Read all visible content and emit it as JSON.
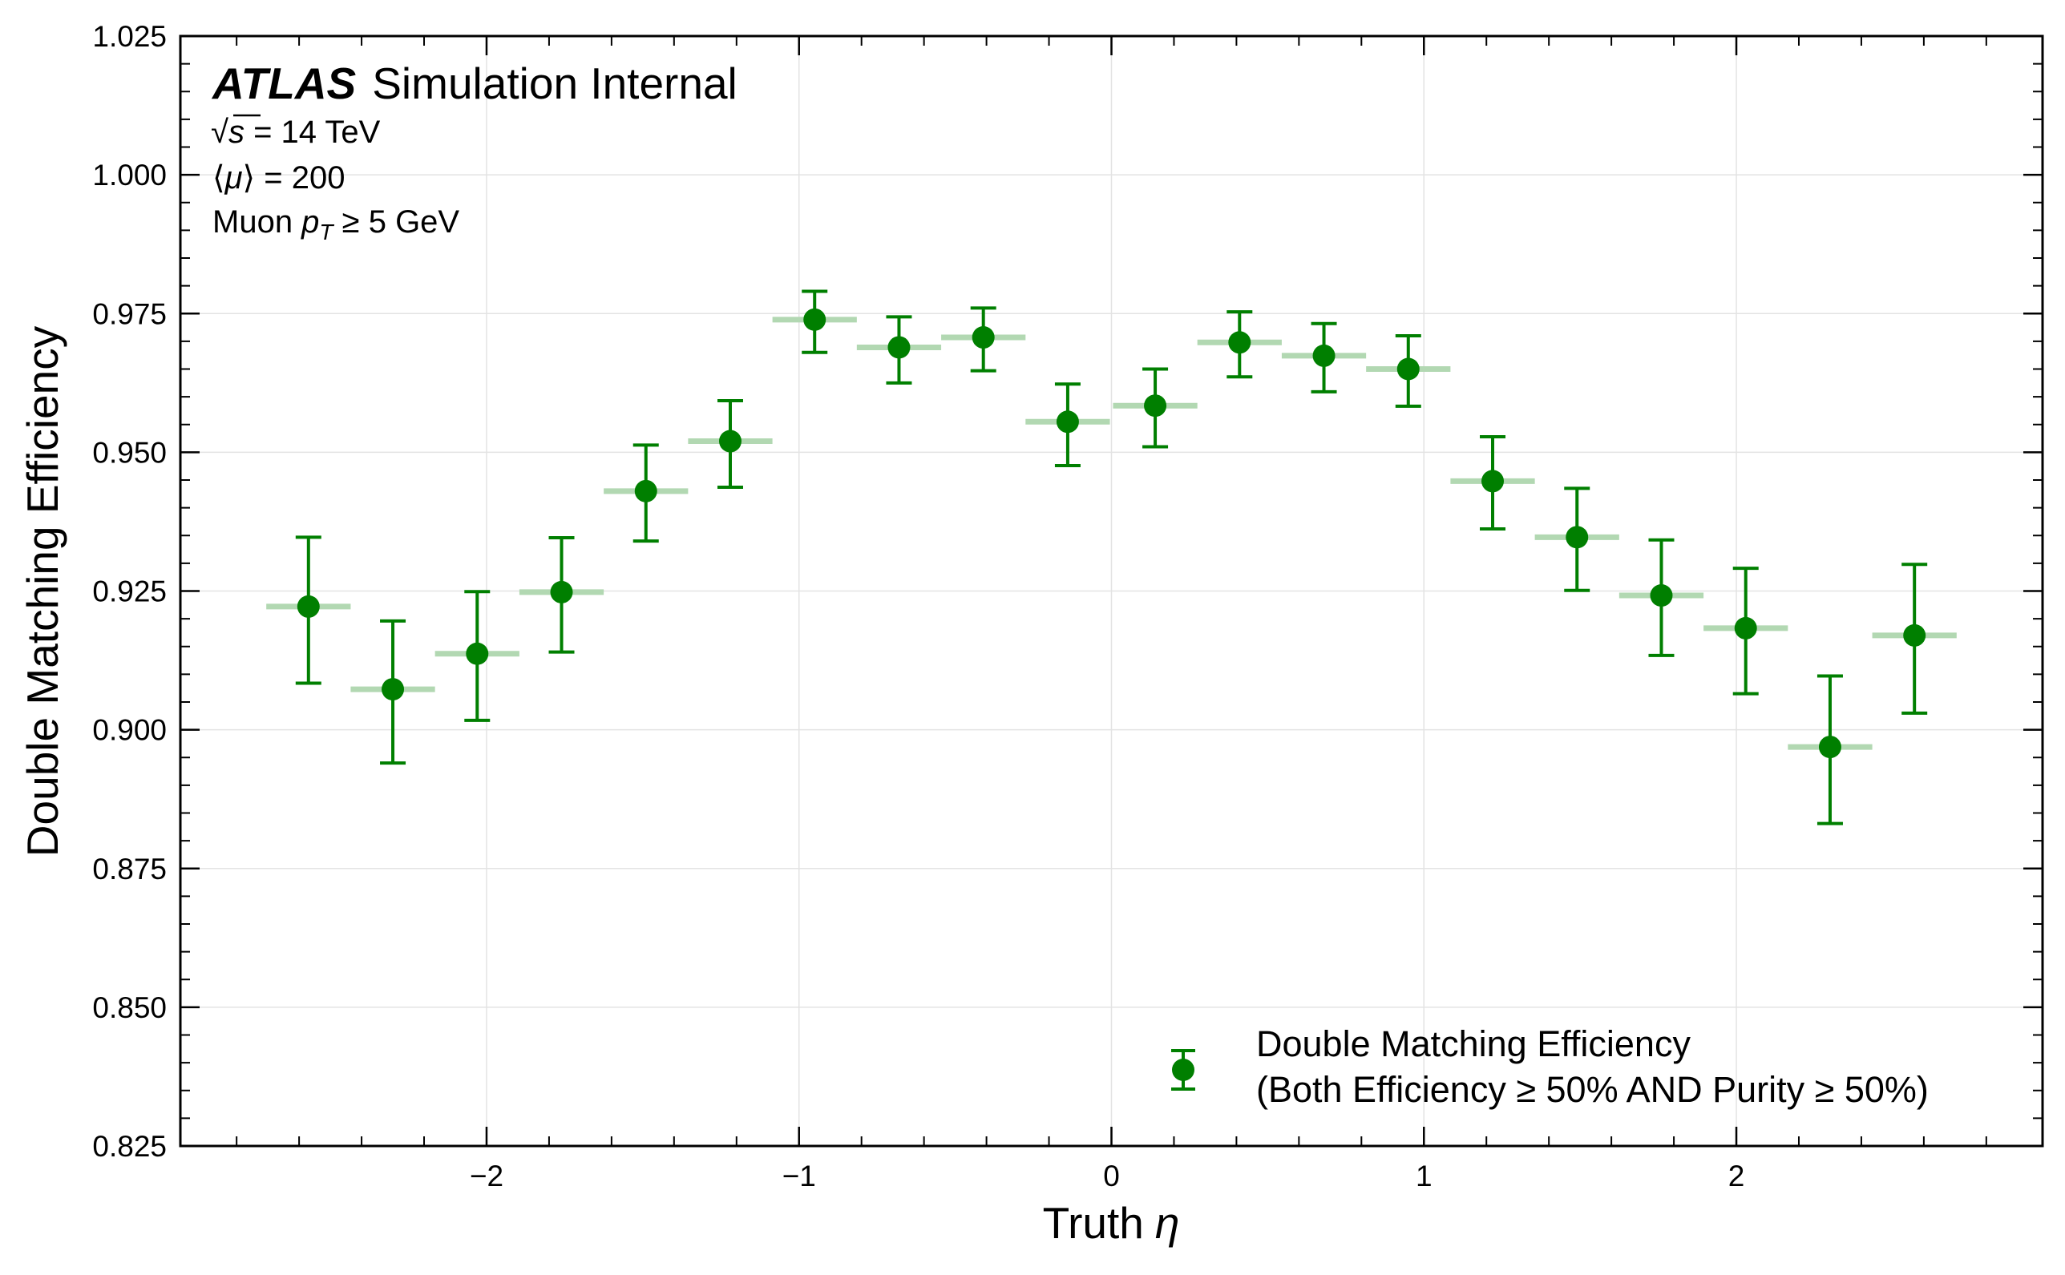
{
  "chart_data": {
    "type": "scatter",
    "style": "points with error bars and horizontal bin-width bars",
    "xlabel_main": "Truth",
    "xlabel_symbol": "η",
    "ylabel": "Double Matching Efficiency",
    "xlim": [
      -2.98,
      2.98
    ],
    "ylim": [
      0.825,
      1.025
    ],
    "x_ticks": [
      -2,
      -1,
      0,
      1,
      2
    ],
    "x_tick_labels": [
      "−2",
      "−1",
      "0",
      "1",
      "2"
    ],
    "y_ticks": [
      0.825,
      0.85,
      0.875,
      0.9,
      0.925,
      0.95,
      0.975,
      1.0,
      1.025
    ],
    "y_tick_labels": [
      "0.825",
      "0.850",
      "0.875",
      "0.900",
      "0.925",
      "0.950",
      "0.975",
      "1.000",
      "1.025"
    ],
    "grid": true,
    "legend_position": "lower-right",
    "annotations": {
      "experiment": "ATLAS",
      "status": "Simulation Internal",
      "energy_prefix": "√",
      "energy_var": "s",
      "energy_value": " = 14 TeV",
      "pileup_open": "⟨",
      "pileup_var": "μ",
      "pileup_close": "⟩",
      "pileup_value": " = 200",
      "cut_prefix": "Muon ",
      "cut_var": "p",
      "cut_sub": "T",
      "cut_value": " ≥ 5 GeV"
    },
    "series": [
      {
        "name": "Double Matching Efficiency",
        "name_line2": "(Both Efficiency ≥ 50% AND Purity ≥ 50%)",
        "color": "#007f00",
        "bin_color": "#b2d8b2",
        "bin_half_width": 0.135,
        "points": [
          {
            "x": -2.57,
            "y": 0.9222,
            "err_low": 0.0138,
            "err_high": 0.0125
          },
          {
            "x": -2.3,
            "y": 0.9073,
            "err_low": 0.0133,
            "err_high": 0.0123
          },
          {
            "x": -2.03,
            "y": 0.9137,
            "err_low": 0.012,
            "err_high": 0.0112
          },
          {
            "x": -1.76,
            "y": 0.9248,
            "err_low": 0.0108,
            "err_high": 0.0098
          },
          {
            "x": -1.49,
            "y": 0.943,
            "err_low": 0.009,
            "err_high": 0.0083
          },
          {
            "x": -1.22,
            "y": 0.952,
            "err_low": 0.0083,
            "err_high": 0.0073
          },
          {
            "x": -0.95,
            "y": 0.9739,
            "err_low": 0.0059,
            "err_high": 0.0051
          },
          {
            "x": -0.68,
            "y": 0.9689,
            "err_low": 0.0064,
            "err_high": 0.0055
          },
          {
            "x": -0.41,
            "y": 0.9707,
            "err_low": 0.006,
            "err_high": 0.0053
          },
          {
            "x": -0.14,
            "y": 0.9555,
            "err_low": 0.0079,
            "err_high": 0.0068
          },
          {
            "x": 0.14,
            "y": 0.9584,
            "err_low": 0.0074,
            "err_high": 0.0066
          },
          {
            "x": 0.41,
            "y": 0.9698,
            "err_low": 0.0062,
            "err_high": 0.0055
          },
          {
            "x": 0.68,
            "y": 0.9674,
            "err_low": 0.0065,
            "err_high": 0.0058
          },
          {
            "x": 0.95,
            "y": 0.965,
            "err_low": 0.0067,
            "err_high": 0.006
          },
          {
            "x": 1.22,
            "y": 0.9448,
            "err_low": 0.0086,
            "err_high": 0.008
          },
          {
            "x": 1.49,
            "y": 0.9347,
            "err_low": 0.0096,
            "err_high": 0.0088
          },
          {
            "x": 1.76,
            "y": 0.9242,
            "err_low": 0.0108,
            "err_high": 0.01
          },
          {
            "x": 2.03,
            "y": 0.9183,
            "err_low": 0.0118,
            "err_high": 0.0108
          },
          {
            "x": 2.3,
            "y": 0.8969,
            "err_low": 0.0138,
            "err_high": 0.0128
          },
          {
            "x": 2.57,
            "y": 0.917,
            "err_low": 0.014,
            "err_high": 0.0128
          }
        ]
      }
    ]
  }
}
